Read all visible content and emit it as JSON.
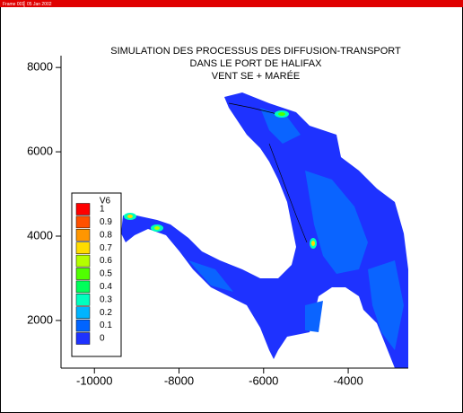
{
  "header": {
    "frame": "Frame 001",
    "date": "05 Jan 2002"
  },
  "chart_data": {
    "type": "contour",
    "title": [
      "SIMULATION DES PROCESSUS DES DIFFUSION-TRANSPORT",
      "DANS LE PORT DE HALIFAX",
      "VENT SE + MARÉE"
    ],
    "xlim": [
      -10790,
      -2580
    ],
    "ylim": [
      870,
      8280
    ],
    "xticks": [
      -10000,
      -8000,
      -6000,
      -4000
    ],
    "yticks": [
      2000,
      4000,
      6000,
      8000
    ],
    "legend": {
      "title": "V6",
      "position": "lower left",
      "levels": [
        1,
        0.9,
        0.8,
        0.7,
        0.6,
        0.5,
        0.4,
        0.3,
        0.2,
        0.1,
        0
      ],
      "colors": [
        "#ff0000",
        "#ff5000",
        "#ff9600",
        "#ffdc00",
        "#b4ff00",
        "#50ff00",
        "#00ff5a",
        "#00ffbe",
        "#00b4ff",
        "#0064ff",
        "#1e32ff"
      ]
    }
  }
}
